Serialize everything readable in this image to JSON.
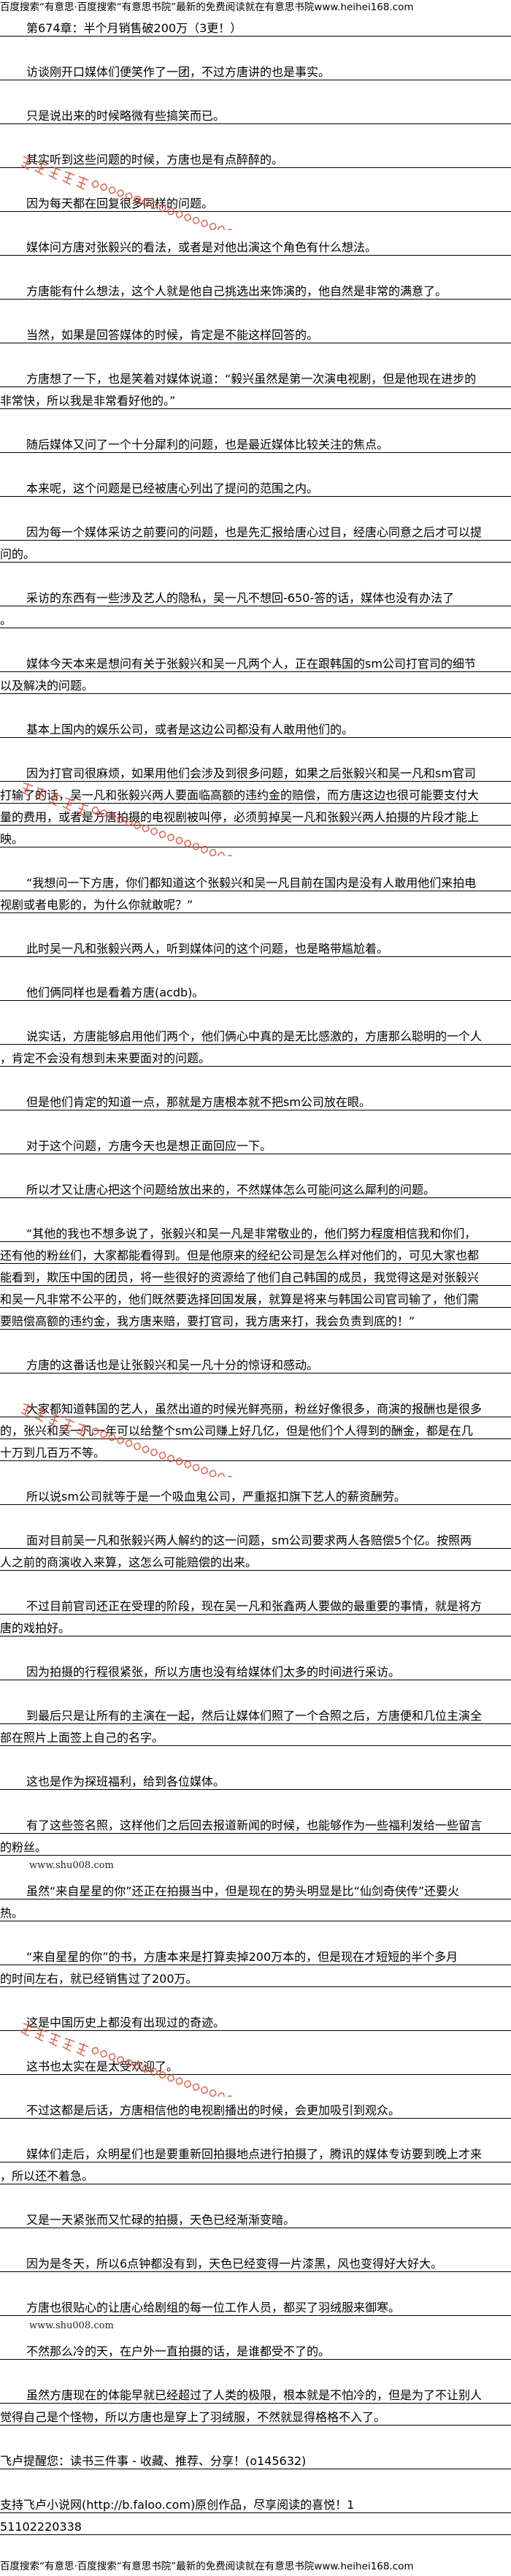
{
  "banner": "百度搜索“有意思·百度搜索“有意思书院”最新的免费阅读就在有意思书院www.heihei168.com",
  "title": "第674章：半个月销售破200万（3更！）",
  "watermark": {
    "name": "有意思书院",
    "url": "www.heihei168.com",
    "color": "#d2472c"
  },
  "inline_watermark": "www.shu008.com",
  "paragraphs": [
    {
      "lines": [
        "访谈刚开口媒体们便笑作了一团，不过方唐讲的也是事实。"
      ]
    },
    {
      "lines": [
        "只是说出来的时候略微有些搞笑而已。"
      ]
    },
    {
      "lines": [
        "其实听到这些问题的时候，方唐也是有点醉醉的。"
      ]
    },
    {
      "lines": [
        "因为每天都在回复很多同样的问题。"
      ]
    },
    {
      "lines": [
        "媒体问方唐对张毅兴的看法，或者是对他出演这个角色有什么想法。"
      ]
    },
    {
      "lines": [
        "方唐能有什么想法，这个人就是他自己挑选出来饰演的，他自然是非常的满意了。"
      ]
    },
    {
      "lines": [
        "当然，如果是回答媒体的时候，肯定是不能这样回答的。"
      ]
    },
    {
      "lines": [
        "方唐想了一下，也是笑着对媒体说道：“毅兴虽然是第一次演电视剧，但是他现在进步的",
        "非常快，所以我是非常看好他的。”"
      ]
    },
    {
      "lines": [
        "随后媒体又问了一个十分犀利的问题，也是最近媒体比较关注的焦点。"
      ]
    },
    {
      "lines": [
        "本来呢，这个问题是已经被唐心列出了提问的范围之内。"
      ]
    },
    {
      "lines": [
        "因为每一个媒体采访之前要问的问题，也是先汇报给唐心过目，经唐心同意之后才可以提",
        "问的。"
      ]
    },
    {
      "lines": [
        "采访的东西有一些涉及艺人的隐私，吴一凡不想回-650-答的话，媒体也没有办法了",
        "。"
      ]
    },
    {
      "lines": [
        "媒体今天本来是想问有关于张毅兴和吴一凡两个人，正在跟韩国的sm公司打官司的细节",
        "以及解决的问题。"
      ]
    },
    {
      "lines": [
        "基本上国内的娱乐公司，或者是这边公司都没有人敢用他们的。"
      ]
    },
    {
      "lines": [
        "因为打官司很麻烦，如果用他们会涉及到很多问题，如果之后张毅兴和吴一凡和sm官司",
        "打输了的话，吴一凡和张毅兴两人要面临高额的违约金的赔偿，而方唐这边也很可能要支付大",
        "量的费用，或者是方唐拍摄的电视剧被叫停，必须剪掉吴一凡和张毅兴两人拍摄的片段才能上",
        "映。"
      ]
    },
    {
      "lines": [
        "“我想问一下方唐，你们都知道这个张毅兴和吴一凡目前在国内是没有人敢用他们来拍电",
        "视剧或者电影的，为什么你就敢呢？”"
      ]
    },
    {
      "lines": [
        "此时吴一凡和张毅兴两人，听到媒体问的这个问题，也是略带尴尬着。"
      ]
    },
    {
      "lines": [
        "他们俩同样也是看着方唐(acdb)。"
      ]
    },
    {
      "lines": [
        "说实话，方唐能够启用他们两个，他们俩心中真的是无比感激的，方唐那么聪明的一个人",
        "，肯定不会没有想到未来要面对的问题。"
      ]
    },
    {
      "lines": [
        "但是他们肯定的知道一点，那就是方唐根本就不把sm公司放在眼。"
      ]
    },
    {
      "lines": [
        "对于这个问题，方唐今天也是想正面回应一下。"
      ]
    },
    {
      "lines": [
        "所以才又让唐心把这个问题给放出来的，不然媒体怎么可能问这么犀利的问题。"
      ]
    },
    {
      "lines": [
        "“其他的我也不想多说了，张毅兴和吴一凡是非常敬业的，他们努力程度相信我和你们，",
        "还有他的粉丝们，大家都能看得到。但是他原来的经纪公司是怎么样对他们的，可见大家也都",
        "能看到，欺压中国的团员，将一些很好的资源给了他们自己韩国的成员，我觉得这是对张毅兴",
        "和吴一凡非常不公平的，他们既然要选择回国发展，就算是将来与韩国公司官司输了，他们需",
        "要赔偿高额的违约金，我方唐来赔，要打官司，我方唐来打，我会负责到底的！”"
      ]
    },
    {
      "lines": [
        "方唐的这番话也是让张毅兴和吴一凡十分的惊讶和感动。"
      ]
    },
    {
      "lines": [
        "大家都知道韩国的艺人，虽然出道的时候光鲜亮丽，粉丝好像很多，商演的报酬也是很多",
        "的，张兴和吴一凡一年可以给整个sm公司赚上好几亿，但是他们个人得到的酬金，都是在几",
        "十万到几百万不等。"
      ]
    },
    {
      "lines": [
        "所以说sm公司就等于是一个吸血鬼公司，严重抠扣旗下艺人的薪资酬劳。"
      ]
    },
    {
      "lines": [
        "面对目前吴一凡和张毅兴两人解约的这一问题，sm公司要求两人各赔偿5个亿。按照两",
        "人之前的商演收入来算，这怎么可能赔偿的出来。"
      ]
    },
    {
      "lines": [
        "不过目前官司还正在受理的阶段，现在吴一凡和张鑫两人要做的最重要的事情，就是将方",
        "唐的戏拍好。"
      ]
    },
    {
      "lines": [
        "因为拍摄的行程很紧张，所以方唐也没有给媒体们太多的时间进行采访。"
      ]
    },
    {
      "lines": [
        "到最后只是让所有的主演在一起，然后让媒体们照了一个合照之后，方唐便和几位主演全",
        "部在照片上面签上自己的名字。"
      ]
    },
    {
      "lines": [
        "这也是作为探班福利，给到各位媒体。"
      ]
    },
    {
      "lines": [
        "有了这些签名照，这样他们之后回去报道新闻的时候，也能够作为一些福利发给一些留言",
        "的粉丝。"
      ]
    },
    {
      "lines": [
        "虽然“来自星星的你”还正在拍摄当中，但是现在的势头明显是比“仙剑奇侠传”还要火",
        "热。"
      ],
      "shu": true
    },
    {
      "lines": [
        "“来自星星的你”的书，方唐本来是打算卖掉200万本的，但是现在才短短的半个多月",
        "的时间左右，就已经销售过了200万。"
      ]
    },
    {
      "lines": [
        "这是中国历史上都没有出现过的奇迹。"
      ]
    },
    {
      "lines": [
        "这书也太实在是太受欢迎了。"
      ]
    },
    {
      "lines": [
        "不过这都是后话，方唐相信他的电视剧播出的时候，会更加吸引到观众。"
      ]
    },
    {
      "lines": [
        "媒体们走后，众明星们也是要重新回拍摄地点进行拍摄了，腾讯的媒体专访要到晚上才来",
        "，所以还不着急。"
      ]
    },
    {
      "lines": [
        "又是一天紧张而又忙碌的拍摄，天色已经渐渐变暗。"
      ]
    },
    {
      "lines": [
        "因为是冬天，所以6点钟都没有到，天色已经变得一片漆黑，风也变得好大好大。"
      ]
    },
    {
      "lines": [
        "方唐也很贴心的让唐心给剧组的每一位工作人员，都买了羽绒服来御寒。"
      ]
    },
    {
      "lines": [
        "不然那么冷的天，在户外一直拍摄的话，是谁都受不了的。"
      ],
      "shu_before": true
    },
    {
      "lines": [
        "虽然方唐现在的体能早就已经超过了人类的极限，根本就是不怕冷的，但是为了不让别人",
        "觉得自己是个怪物，所以方唐也是穿上了羽绒服，不然就显得格格不入了。"
      ]
    }
  ],
  "footer": [
    {
      "lines": [
        "飞卢提醒您：读书三件事 - 收藏、推荐、分享！(o145632)"
      ]
    },
    {
      "lines": [
        "支持飞卢小说网(http://b.faloo.com)原创作品，尽享阅读的喜悦！1",
        "51102220338"
      ]
    }
  ],
  "banner_bottom": "百度搜索“有意思·百度搜索“有意思书院”最新的免费阅读就在有意思书院www.heihei168.com"
}
